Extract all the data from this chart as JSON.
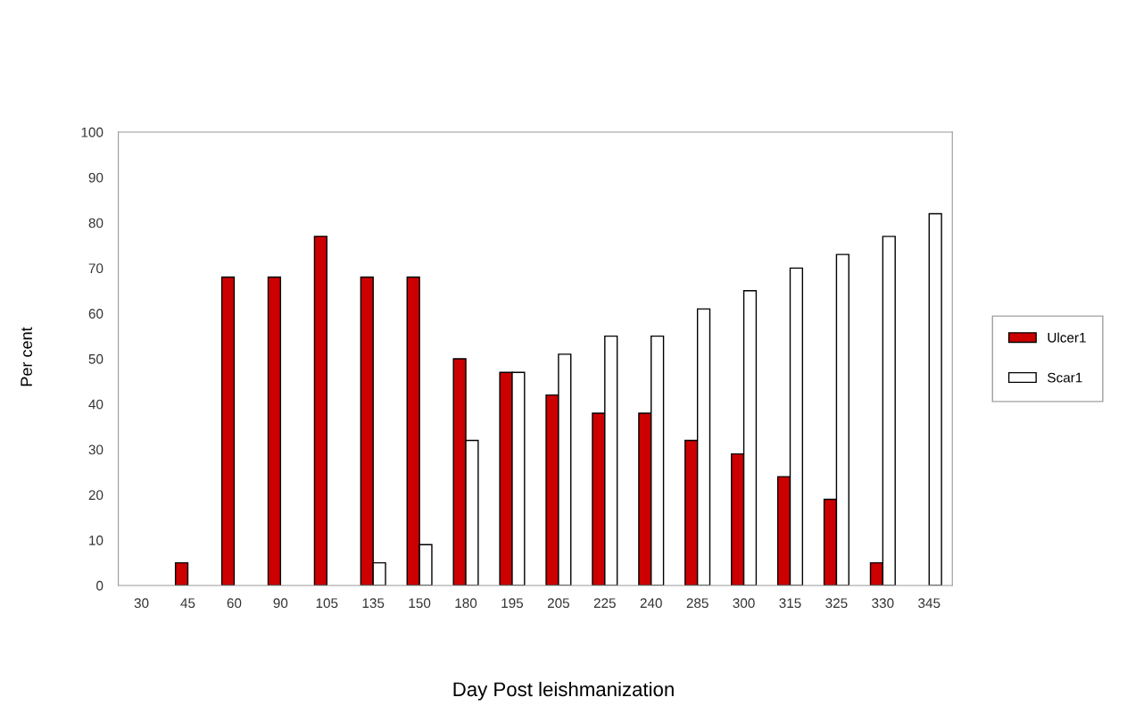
{
  "chart_data": {
    "type": "bar",
    "xlabel": "Day Post leishmanization",
    "ylabel": "Per cent",
    "categories": [
      "30",
      "45",
      "60",
      "90",
      "105",
      "135",
      "150",
      "180",
      "195",
      "205",
      "225",
      "240",
      "285",
      "300",
      "315",
      "325",
      "330",
      "345"
    ],
    "series": [
      {
        "name": "Ulcer1",
        "color": "#cc0000",
        "values": [
          null,
          5,
          68,
          68,
          77,
          68,
          68,
          50,
          47,
          42,
          38,
          38,
          32,
          29,
          24,
          19,
          5,
          null
        ]
      },
      {
        "name": "Scar1",
        "color": "#ffffff",
        "values": [
          null,
          null,
          null,
          null,
          null,
          5,
          9,
          32,
          47,
          51,
          55,
          55,
          61,
          65,
          70,
          73,
          77,
          82
        ]
      }
    ],
    "ylim": [
      0,
      100
    ],
    "yticks": [
      0,
      10,
      20,
      30,
      40,
      50,
      60,
      70,
      80,
      90,
      100
    ],
    "grid": false,
    "legend": "right"
  }
}
